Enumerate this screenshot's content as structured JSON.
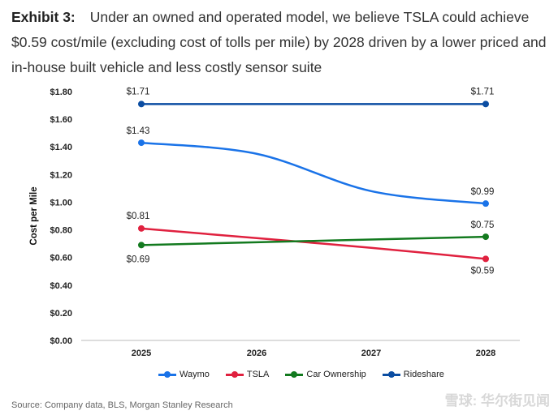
{
  "title": {
    "exhibit": "Exhibit 3:",
    "text": "Under an owned and operated model, we believe TSLA could achieve $0.59 cost/mile (excluding cost of tolls per mile) by 2028 driven by a lower priced and in-house built vehicle and less costly sensor suite"
  },
  "source": "Source: Company data, BLS, Morgan Stanley Research",
  "watermark": "雪球: 华尔街见闻",
  "chart_data": {
    "type": "line",
    "x": [
      "2025",
      "2026",
      "2027",
      "2028"
    ],
    "ylabel": "Cost per Mile",
    "ylim": [
      0,
      1.8
    ],
    "yticks": [
      "$0.00",
      "$0.20",
      "$0.40",
      "$0.60",
      "$0.80",
      "$1.00",
      "$1.20",
      "$1.40",
      "$1.60",
      "$1.80"
    ],
    "grid": false,
    "legend_position": "bottom",
    "series": [
      {
        "name": "Waymo",
        "color": "#1a73e8",
        "values": [
          1.43,
          1.35,
          1.08,
          0.99
        ],
        "labels": [
          "$1.43",
          "",
          "",
          "$0.99"
        ]
      },
      {
        "name": "TSLA",
        "color": "#e0213f",
        "values": [
          0.81,
          0.74,
          0.67,
          0.59
        ],
        "labels": [
          "$0.81",
          "",
          "",
          "$0.59"
        ]
      },
      {
        "name": "Car Ownership",
        "color": "#137a1f",
        "values": [
          0.69,
          0.71,
          0.73,
          0.75
        ],
        "labels": [
          "$0.69",
          "",
          "",
          "$0.75"
        ]
      },
      {
        "name": "Rideshare",
        "color": "#0b4da2",
        "values": [
          1.71,
          1.71,
          1.71,
          1.71
        ],
        "labels": [
          "$1.71",
          "",
          "",
          "$1.71"
        ]
      }
    ]
  }
}
